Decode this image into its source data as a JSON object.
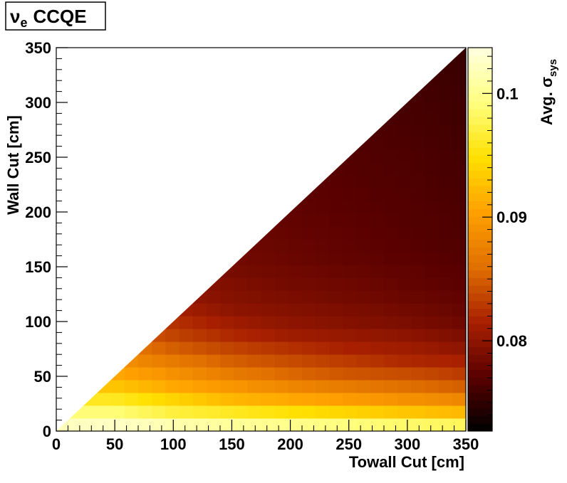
{
  "chart_data": {
    "type": "heatmap",
    "title": "CCQE",
    "title_symbol": "ν",
    "title_subscript": "e",
    "xlabel": "Towall Cut [cm]",
    "ylabel": "Wall Cut [cm]",
    "colorbar_label": "Avg. σ",
    "colorbar_label_subscript": "sys",
    "xlim": [
      0,
      350
    ],
    "ylim": [
      0,
      350
    ],
    "zlim": [
      0.0727,
      0.1037
    ],
    "x_ticks": [
      "0",
      "50",
      "100",
      "150",
      "200",
      "250",
      "300",
      "350"
    ],
    "y_ticks": [
      "0",
      "50",
      "100",
      "150",
      "200",
      "250",
      "300",
      "350"
    ],
    "z_ticks": [
      "0.08",
      "0.09",
      "0.1"
    ],
    "z_tick_values": [
      0.08,
      0.09,
      0.1
    ],
    "bin_width": 11.67,
    "bins_per_axis": 30,
    "region": "wall <= towall",
    "colormap": "dark-body",
    "color_stops": [
      "#000000",
      "#5a0000",
      "#a82000",
      "#e07000",
      "#ffa000",
      "#ffe000",
      "#ffff80",
      "#ffffe0"
    ],
    "row_profiles": [
      {
        "wall": 5.8,
        "values": [
          0.102,
          0.1025,
          0.1015,
          0.1005,
          0.0998,
          0.0992,
          0.0985,
          0.098
        ]
      },
      {
        "wall": 17.5,
        "values": [
          0.099,
          0.099,
          0.097,
          0.096,
          0.095,
          0.094,
          0.093,
          0.092
        ]
      },
      {
        "wall": 29.2,
        "values": [
          0.096,
          0.096,
          0.094,
          0.092,
          0.091,
          0.09,
          0.089,
          0.088
        ]
      },
      {
        "wall": 40.8,
        "values": [
          0.093,
          0.093,
          0.091,
          0.0895,
          0.088,
          0.087,
          0.086,
          0.085
        ]
      },
      {
        "wall": 52.5,
        "values": [
          0.091,
          0.091,
          0.089,
          0.087,
          0.0855,
          0.0845,
          0.084,
          0.083
        ]
      },
      {
        "wall": 64.2,
        "values": [
          0.089,
          0.089,
          0.087,
          0.085,
          0.084,
          0.083,
          0.082,
          0.0815
        ]
      },
      {
        "wall": 75.8,
        "values": [
          0.087,
          0.087,
          0.085,
          0.0835,
          0.0825,
          0.0815,
          0.081,
          0.08
        ]
      },
      {
        "wall": 87.5,
        "values": [
          0.0855,
          0.0855,
          0.0835,
          0.082,
          0.081,
          0.0805,
          0.08,
          0.079
        ]
      },
      {
        "wall": 99.2,
        "values": [
          0.084,
          0.084,
          0.0825,
          0.081,
          0.08,
          0.0795,
          0.079,
          0.0782
        ]
      },
      {
        "wall": 110.8,
        "values": [
          0.083,
          0.083,
          0.0815,
          0.08,
          0.0795,
          0.079,
          0.0785,
          0.0778
        ]
      },
      {
        "wall": 122.5,
        "values": [
          0.082,
          0.082,
          0.0805,
          0.0795,
          0.079,
          0.0785,
          0.078,
          0.0775
        ]
      },
      {
        "wall": 134.2,
        "values": [
          0.0812,
          0.0812,
          0.08,
          0.0792,
          0.0786,
          0.0782,
          0.0777,
          0.0772
        ]
      },
      {
        "wall": 145.8,
        "values": [
          0.0805,
          0.0805,
          0.0795,
          0.0788,
          0.0783,
          0.0779,
          0.0775,
          0.077
        ]
      },
      {
        "wall": 157.5,
        "values": [
          0.08,
          0.08,
          0.0792,
          0.0785,
          0.078,
          0.0776,
          0.0772,
          0.0768
        ]
      },
      {
        "wall": 175.0,
        "values": [
          0.0795,
          0.0795,
          0.0788,
          0.0782,
          0.0778,
          0.0774,
          0.077,
          0.0766
        ]
      },
      {
        "wall": 204.2,
        "values": [
          0.079,
          0.079,
          0.0784,
          0.0779,
          0.0775,
          0.0771,
          0.0768,
          0.0764
        ]
      },
      {
        "wall": 250.8,
        "values": [
          0.0786,
          0.0786,
          0.078,
          0.0776,
          0.0772,
          0.0768,
          0.0765,
          0.0761
        ]
      },
      {
        "wall": 297.5,
        "values": [
          0.0782,
          0.0782,
          0.0776,
          0.0772,
          0.0768,
          0.0765,
          0.0762,
          0.0758
        ]
      },
      {
        "wall": 344.2,
        "values": [
          0.0778,
          0.0778,
          0.0772,
          0.0768,
          0.0765,
          0.0762,
          0.0759,
          0.0755
        ]
      }
    ],
    "row_profile_towall_points": [
      0,
      50,
      100,
      150,
      200,
      250,
      300,
      350
    ],
    "grid": false,
    "legend": "none"
  }
}
